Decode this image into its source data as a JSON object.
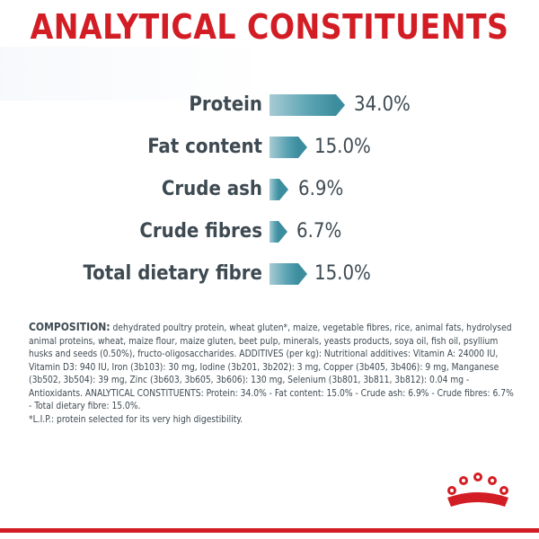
{
  "title": "ANALYTICAL CONSTITUENTS",
  "constituents": [
    {
      "label": "Protein",
      "value": "34.0%"
    },
    {
      "label": "Fat content",
      "value": "15.0%"
    },
    {
      "label": "Crude ash",
      "value": "6.9%"
    },
    {
      "label": "Crude fibres",
      "value": "6.7%"
    },
    {
      "label": "Total dietary fibre",
      "value": "15.0%"
    }
  ],
  "composition": {
    "lead": "COMPOSITION:",
    "text": " dehydrated poultry protein, wheat gluten*, maize, vegetable fibres, rice, animal fats, hydrolysed animal proteins, wheat, maize flour, maize gluten, beet pulp, minerals, yeasts products, soya oil, fish oil, psyllium husks and seeds (0.50%), fructo-oligosaccharides. ADDITIVES (per kg): Nutritional additives: Vitamin A: 24000 IU, Vitamin D3: 940 IU, Iron (3b103): 30 mg, Iodine (3b201, 3b202): 3 mg, Copper (3b405, 3b406): 9 mg, Manganese (3b502, 3b504): 39 mg, Zinc (3b603, 3b605, 3b606): 130 mg, Selenium (3b801, 3b811, 3b812): 0.04 mg - Antioxidants. ANALYTICAL CONSTITUENTS: Protein: 34.0% - Fat content: 15.0% - Crude ash: 6.9% - Crude fibres: 6.7% - Total dietary fibre: 15.0%.",
    "footnote": "*L.I.P.: protein selected for its very high digestibility."
  },
  "colors": {
    "title_red": "#d31d24",
    "bar_teal": "#3c8d9e",
    "text_gray": "#3e4a52"
  },
  "logo": "royal-crown-icon"
}
